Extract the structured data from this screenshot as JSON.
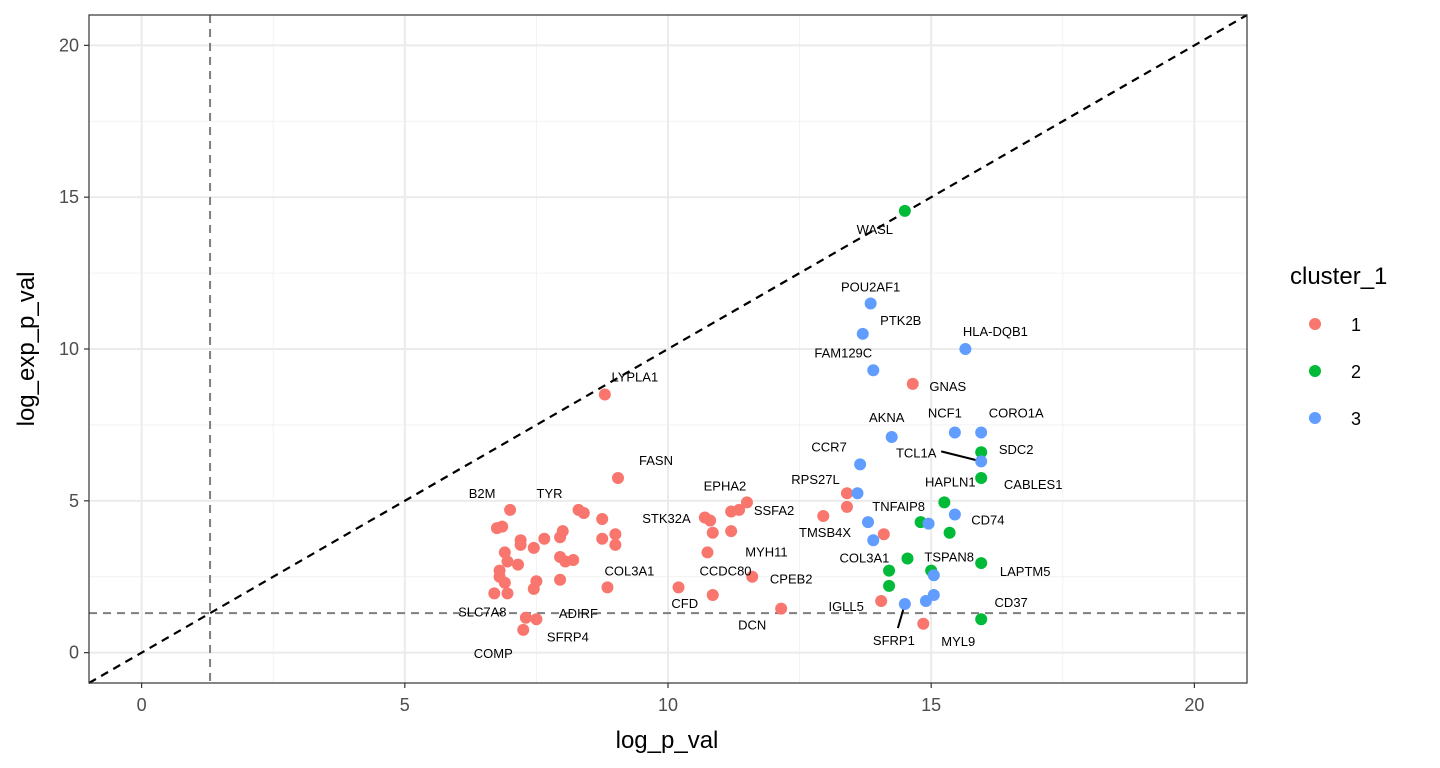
{
  "chart_data": {
    "type": "scatter",
    "xlabel": "log_p_val",
    "ylabel": "log_exp_p_val",
    "xlim": [
      -1,
      21
    ],
    "ylim": [
      -1,
      21
    ],
    "x_ticks": [
      0,
      5,
      10,
      15,
      20
    ],
    "y_ticks": [
      0,
      5,
      10,
      15,
      20
    ],
    "grid": true,
    "reference_lines": {
      "diagonal": "y = x",
      "threshold": 1.3
    },
    "legend": {
      "title": "cluster_1",
      "position": "right",
      "entries": [
        {
          "label": "1",
          "color": "#F8766D"
        },
        {
          "label": "2",
          "color": "#00BA38"
        },
        {
          "label": "3",
          "color": "#619CFF"
        }
      ]
    },
    "series": [
      {
        "name": "1",
        "color": "#F8766D",
        "points": [
          [
            8.8,
            8.5
          ],
          [
            9.05,
            5.75
          ],
          [
            7.0,
            4.7
          ],
          [
            6.75,
            4.1
          ],
          [
            6.85,
            4.15
          ],
          [
            8.3,
            4.7
          ],
          [
            8.4,
            4.6
          ],
          [
            8.75,
            4.4
          ],
          [
            8.0,
            4.0
          ],
          [
            7.95,
            3.8
          ],
          [
            7.65,
            3.75
          ],
          [
            7.2,
            3.7
          ],
          [
            7.45,
            3.45
          ],
          [
            7.2,
            3.55
          ],
          [
            6.9,
            3.3
          ],
          [
            6.95,
            3.0
          ],
          [
            7.15,
            2.9
          ],
          [
            6.8,
            2.7
          ],
          [
            6.8,
            2.5
          ],
          [
            6.9,
            2.3
          ],
          [
            7.5,
            2.35
          ],
          [
            7.45,
            2.1
          ],
          [
            6.95,
            1.95
          ],
          [
            6.7,
            1.95
          ],
          [
            7.3,
            1.15
          ],
          [
            7.5,
            1.1
          ],
          [
            7.25,
            0.75
          ],
          [
            7.95,
            3.15
          ],
          [
            8.05,
            3.0
          ],
          [
            8.2,
            3.05
          ],
          [
            7.95,
            2.4
          ],
          [
            8.75,
            3.75
          ],
          [
            9.0,
            3.9
          ],
          [
            9.0,
            3.55
          ],
          [
            8.85,
            2.15
          ],
          [
            10.7,
            4.45
          ],
          [
            10.8,
            4.35
          ],
          [
            11.2,
            4.65
          ],
          [
            11.35,
            4.7
          ],
          [
            11.5,
            4.95
          ],
          [
            10.85,
            3.95
          ],
          [
            11.2,
            4.0
          ],
          [
            10.75,
            3.3
          ],
          [
            11.6,
            2.5
          ],
          [
            10.2,
            2.15
          ],
          [
            10.85,
            1.9
          ],
          [
            12.15,
            1.45
          ],
          [
            12.95,
            4.5
          ],
          [
            13.4,
            5.25
          ],
          [
            13.4,
            4.8
          ],
          [
            14.1,
            3.9
          ],
          [
            14.65,
            8.85
          ],
          [
            14.05,
            1.7
          ],
          [
            14.85,
            0.95
          ]
        ]
      },
      {
        "name": "2",
        "color": "#00BA38",
        "points": [
          [
            14.5,
            14.55
          ],
          [
            15.95,
            6.6
          ],
          [
            15.95,
            5.75
          ],
          [
            15.25,
            4.95
          ],
          [
            14.8,
            4.3
          ],
          [
            15.35,
            3.95
          ],
          [
            14.55,
            3.1
          ],
          [
            15.95,
            2.95
          ],
          [
            14.2,
            2.7
          ],
          [
            15.0,
            2.7
          ],
          [
            14.2,
            2.2
          ],
          [
            15.95,
            1.1
          ]
        ]
      },
      {
        "name": "3",
        "color": "#619CFF",
        "points": [
          [
            13.85,
            11.5
          ],
          [
            13.7,
            10.5
          ],
          [
            13.9,
            9.3
          ],
          [
            15.65,
            10.0
          ],
          [
            14.25,
            7.1
          ],
          [
            15.45,
            7.25
          ],
          [
            15.95,
            7.25
          ],
          [
            15.95,
            6.3
          ],
          [
            13.65,
            6.2
          ],
          [
            13.6,
            5.25
          ],
          [
            13.8,
            4.3
          ],
          [
            14.95,
            4.25
          ],
          [
            15.45,
            4.55
          ],
          [
            13.9,
            3.7
          ],
          [
            15.05,
            2.55
          ],
          [
            14.5,
            1.6
          ],
          [
            14.9,
            1.7
          ],
          [
            15.05,
            1.9
          ]
        ]
      }
    ],
    "labels": [
      {
        "text": "WASL",
        "x": 14.5,
        "y": 14.55
      },
      {
        "text": "POU2AF1",
        "x": 13.85,
        "y": 11.5
      },
      {
        "text": "PTK2B",
        "x": 13.7,
        "y": 10.5
      },
      {
        "text": "HLA-DQB1",
        "x": 15.65,
        "y": 10.0
      },
      {
        "text": "FAM129C",
        "x": 13.9,
        "y": 9.3
      },
      {
        "text": "GNAS",
        "x": 14.65,
        "y": 8.85
      },
      {
        "text": "LYPLA1",
        "x": 8.8,
        "y": 8.5
      },
      {
        "text": "AKNA",
        "x": 14.25,
        "y": 7.1
      },
      {
        "text": "NCF1",
        "x": 15.45,
        "y": 7.25
      },
      {
        "text": "CORO1A",
        "x": 15.95,
        "y": 7.25
      },
      {
        "text": "TCL1A",
        "x": 15.95,
        "y": 6.3
      },
      {
        "text": "SDC2",
        "x": 15.95,
        "y": 6.6
      },
      {
        "text": "CCR7",
        "x": 13.65,
        "y": 6.2
      },
      {
        "text": "FASN",
        "x": 9.05,
        "y": 5.75
      },
      {
        "text": "RPS27L",
        "x": 13.6,
        "y": 5.25
      },
      {
        "text": "EPHA2",
        "x": 11.5,
        "y": 4.95
      },
      {
        "text": "HAPLN1",
        "x": 15.25,
        "y": 4.95
      },
      {
        "text": "CABLES1",
        "x": 15.95,
        "y": 5.75
      },
      {
        "text": "B2M",
        "x": 7.0,
        "y": 4.7
      },
      {
        "text": "TYR",
        "x": 8.3,
        "y": 4.7
      },
      {
        "text": "SSFA2",
        "x": 11.35,
        "y": 4.7
      },
      {
        "text": "TNFAIP8",
        "x": 14.8,
        "y": 4.3
      },
      {
        "text": "CD74",
        "x": 15.45,
        "y": 4.55
      },
      {
        "text": "STK32A",
        "x": 10.75,
        "y": 4.4
      },
      {
        "text": "TMSB4X",
        "x": 13.8,
        "y": 4.3
      },
      {
        "text": "MYH11",
        "x": 10.75,
        "y": 3.3
      },
      {
        "text": "COL3A1",
        "x": 14.55,
        "y": 3.1
      },
      {
        "text": "TSPAN8",
        "x": 15.0,
        "y": 2.7
      },
      {
        "text": "COL3A1",
        "x": 8.85,
        "y": 2.15
      },
      {
        "text": "CCDC80",
        "x": 10.2,
        "y": 2.15
      },
      {
        "text": "CPEB2",
        "x": 11.6,
        "y": 2.5
      },
      {
        "text": "LAPTM5",
        "x": 15.95,
        "y": 2.95
      },
      {
        "text": "CFD",
        "x": 10.85,
        "y": 1.9
      },
      {
        "text": "ADIRF",
        "x": 7.5,
        "y": 1.1
      },
      {
        "text": "SLC7A8",
        "x": 6.7,
        "y": 1.95
      },
      {
        "text": "IGLL5",
        "x": 14.05,
        "y": 1.7
      },
      {
        "text": "CD37",
        "x": 15.95,
        "y": 1.1
      },
      {
        "text": "DCN",
        "x": 12.15,
        "y": 1.45
      },
      {
        "text": "SFRP4",
        "x": 7.3,
        "y": 1.15
      },
      {
        "text": "SFRP1",
        "x": 14.5,
        "y": 1.6
      },
      {
        "text": "MYL9",
        "x": 14.85,
        "y": 0.95
      },
      {
        "text": "COMP",
        "x": 7.25,
        "y": 0.75
      }
    ]
  }
}
